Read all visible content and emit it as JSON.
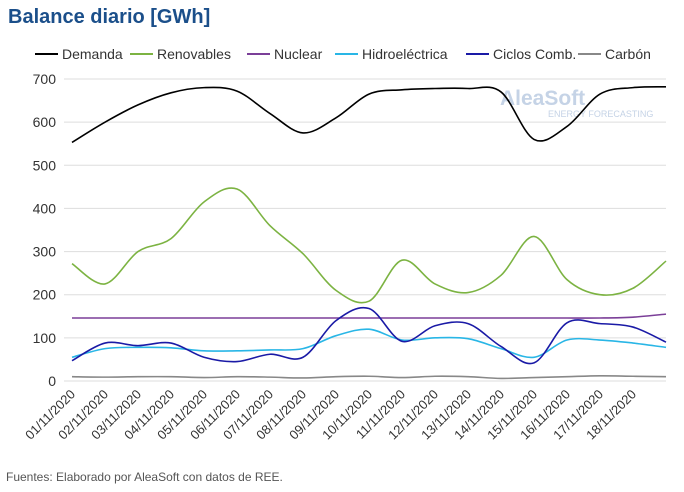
{
  "chart_data": {
    "type": "line",
    "title": "Balance diario [GWh]",
    "footnote": "Fuentes: Elaborado por AleaSoft con datos de REE.",
    "watermark": {
      "brand": "AleaSoft",
      "tagline": "ENERGY FORECASTING"
    },
    "categories": [
      "01/11/2020",
      "02/11/2020",
      "03/11/2020",
      "04/11/2020",
      "05/11/2020",
      "06/11/2020",
      "07/11/2020",
      "08/11/2020",
      "09/11/2020",
      "10/11/2020",
      "11/11/2020",
      "12/11/2020",
      "13/11/2020",
      "14/11/2020",
      "15/11/2020",
      "16/11/2020",
      "17/11/2020",
      "18/11/2020",
      null
    ],
    "series": [
      {
        "name": "Demanda",
        "color": "#000000",
        "values": [
          553,
          600,
          640,
          668,
          680,
          672,
          620,
          575,
          610,
          665,
          675,
          678,
          678,
          670,
          560,
          590,
          665,
          680,
          682
        ]
      },
      {
        "name": "Renovables",
        "color": "#7cb342",
        "values": [
          272,
          225,
          300,
          330,
          415,
          445,
          360,
          295,
          210,
          185,
          280,
          225,
          205,
          245,
          335,
          235,
          200,
          215,
          278
        ]
      },
      {
        "name": "Nuclear",
        "color": "#7b3f98",
        "values": [
          146,
          146,
          146,
          146,
          146,
          146,
          146,
          146,
          146,
          146,
          146,
          146,
          146,
          146,
          146,
          146,
          146,
          148,
          155
        ]
      },
      {
        "name": "Hidroeléctrica",
        "color": "#29b6e6",
        "values": [
          55,
          75,
          78,
          77,
          70,
          70,
          72,
          75,
          105,
          120,
          95,
          100,
          98,
          75,
          55,
          95,
          95,
          88,
          78
        ]
      },
      {
        "name": "Ciclos Comb.",
        "color": "#1a1aa6",
        "values": [
          47,
          88,
          82,
          88,
          55,
          45,
          62,
          55,
          140,
          168,
          92,
          128,
          133,
          80,
          42,
          135,
          133,
          125,
          90
        ]
      },
      {
        "name": "Carbón",
        "color": "#888888",
        "values": [
          10,
          9,
          10,
          10,
          8,
          10,
          9,
          7,
          10,
          11,
          8,
          11,
          10,
          6,
          8,
          10,
          12,
          11,
          10
        ]
      }
    ],
    "ylim": [
      0,
      700
    ],
    "yticks": [
      0,
      100,
      200,
      300,
      400,
      500,
      600,
      700
    ],
    "grid": true
  }
}
